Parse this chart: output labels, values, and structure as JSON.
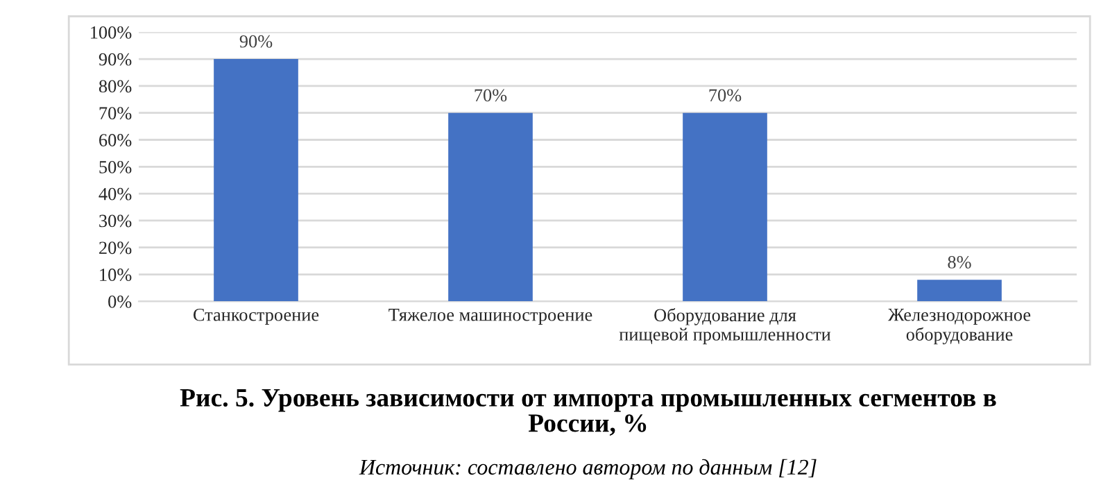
{
  "chart_data": {
    "type": "bar",
    "title": "Рис. 5. Уровень зависимости от импорта промышленных сегментов в\nРоссии, %",
    "categories": [
      "Станкостроение",
      "Тяжелое машиностроение",
      "Оборудование для\nпищевой промышленности",
      "Железнодорожное\nоборудование"
    ],
    "values": [
      90,
      70,
      70,
      8
    ],
    "color": "#4472c4",
    "value_labels": [
      "90%",
      "70%",
      "70%",
      "8%"
    ],
    "ylim": [
      0,
      100
    ],
    "yticks": [
      {
        "value": 0,
        "label": "0%"
      },
      {
        "value": 10,
        "label": "10%"
      },
      {
        "value": 20,
        "label": "20%"
      },
      {
        "value": 30,
        "label": "30%"
      },
      {
        "value": 40,
        "label": "40%"
      },
      {
        "value": 50,
        "label": "50%"
      },
      {
        "value": 60,
        "label": "60%"
      },
      {
        "value": 70,
        "label": "70%"
      },
      {
        "value": 80,
        "label": "80%"
      },
      {
        "value": 90,
        "label": "90%"
      },
      {
        "value": 100,
        "label": "100%"
      }
    ],
    "grid": "y",
    "legend": false,
    "annotations": [
      "Источник: составлено автором по данным [12]"
    ]
  }
}
